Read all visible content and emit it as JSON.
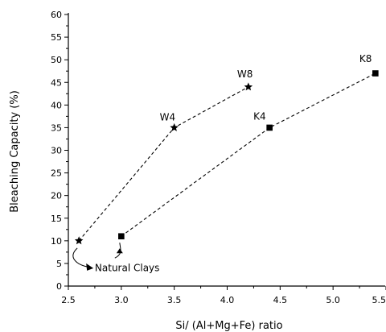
{
  "chart_data": {
    "type": "scatter",
    "title": "",
    "xlabel": "Si/ (Al+Mg+Fe) ratio",
    "ylabel": "Bleaching Capacity (%)",
    "xlim": [
      2.5,
      5.5
    ],
    "ylim": [
      0,
      60
    ],
    "xticks": [
      "2.5",
      "3.0",
      "3.5",
      "4.0",
      "4.5",
      "5.0",
      "5.5"
    ],
    "yticks": [
      "0",
      "5",
      "10",
      "15",
      "20",
      "25",
      "30",
      "35",
      "40",
      "45",
      "50",
      "55",
      "60"
    ],
    "grid": false,
    "series": [
      {
        "marker": "star",
        "line": "dashed",
        "x": [
          2.6,
          3.5,
          4.2
        ],
        "y": [
          10,
          35,
          44
        ],
        "labels": [
          "",
          "W4",
          "W8"
        ]
      },
      {
        "marker": "square",
        "line": "dashed",
        "x": [
          3.0,
          4.4,
          5.4
        ],
        "y": [
          11,
          35,
          47
        ],
        "labels": [
          "",
          "K4",
          "K8"
        ]
      }
    ],
    "annotations": [
      {
        "text": "Natural Clays",
        "x": 2.75,
        "y": 4
      }
    ]
  }
}
